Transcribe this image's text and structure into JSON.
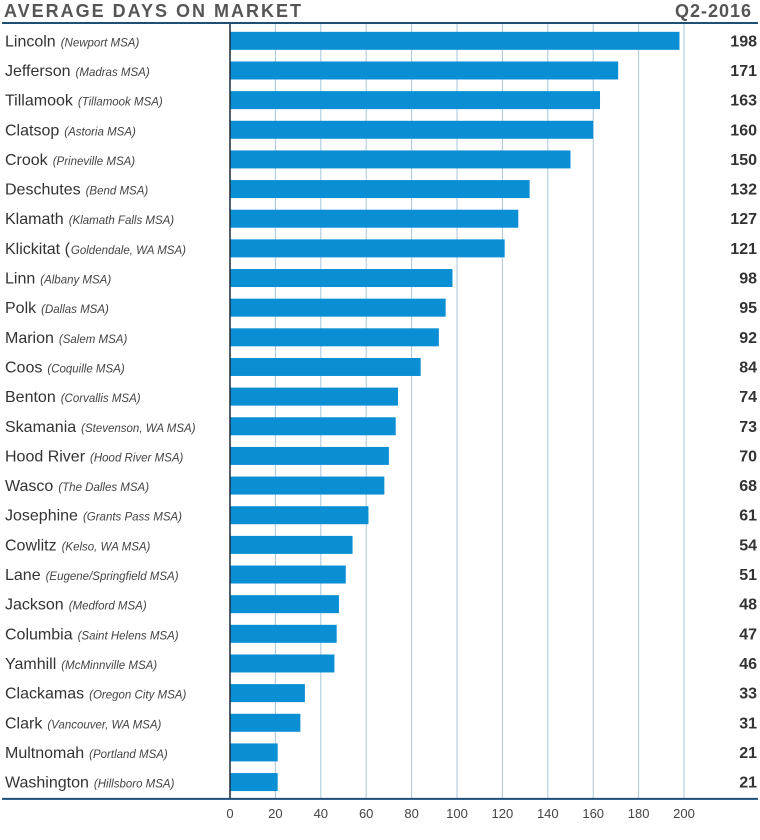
{
  "chart_data": {
    "type": "bar",
    "orientation": "horizontal",
    "title": "AVERAGE DAYS ON MARKET",
    "period": "Q2-2016",
    "xlim": [
      0,
      200
    ],
    "xticks": [
      0,
      20,
      40,
      60,
      80,
      100,
      120,
      140,
      160,
      180,
      200
    ],
    "grid": true,
    "bar_color": "#0a8fd4",
    "grid_color": "#a8c6dc",
    "rule_color": "#1f4e79",
    "categories": [
      {
        "name": "Lincoln",
        "sub": "(Newport MSA)",
        "value": 198
      },
      {
        "name": "Jefferson",
        "sub": "(Madras MSA)",
        "value": 171
      },
      {
        "name": "Tillamook",
        "sub": "(Tillamook MSA)",
        "value": 163
      },
      {
        "name": "Clatsop",
        "sub": "(Astoria MSA)",
        "value": 160
      },
      {
        "name": "Crook",
        "sub": "(Prineville MSA)",
        "value": 150
      },
      {
        "name": "Deschutes",
        "sub": "(Bend MSA)",
        "value": 132
      },
      {
        "name": "Klamath",
        "sub": "(Klamath Falls MSA)",
        "value": 127
      },
      {
        "name": "Klickitat (",
        "sub": "Goldendale, WA MSA)",
        "value": 121
      },
      {
        "name": "Linn",
        "sub": "(Albany MSA)",
        "value": 98
      },
      {
        "name": "Polk",
        "sub": "(Dallas MSA)",
        "value": 95
      },
      {
        "name": "Marion",
        "sub": "(Salem MSA)",
        "value": 92
      },
      {
        "name": "Coos",
        "sub": "(Coquille MSA)",
        "value": 84
      },
      {
        "name": "Benton",
        "sub": "(Corvallis MSA)",
        "value": 74
      },
      {
        "name": "Skamania",
        "sub": "(Stevenson, WA MSA)",
        "value": 73
      },
      {
        "name": "Hood River",
        "sub": "(Hood River MSA)",
        "value": 70
      },
      {
        "name": "Wasco",
        "sub": "(The Dalles MSA)",
        "value": 68
      },
      {
        "name": "Josephine",
        "sub": "(Grants Pass MSA)",
        "value": 61
      },
      {
        "name": "Cowlitz",
        "sub": "(Kelso, WA MSA)",
        "value": 54
      },
      {
        "name": "Lane",
        "sub": "(Eugene/Springfield MSA)",
        "value": 51
      },
      {
        "name": "Jackson",
        "sub": "(Medford MSA)",
        "value": 48
      },
      {
        "name": "Columbia",
        "sub": "(Saint Helens MSA)",
        "value": 47
      },
      {
        "name": "Yamhill",
        "sub": "(McMinnville MSA)",
        "value": 46
      },
      {
        "name": "Clackamas",
        "sub": "(Oregon City MSA)",
        "value": 33
      },
      {
        "name": "Clark",
        "sub": "(Vancouver, WA MSA)",
        "value": 31
      },
      {
        "name": "Multnomah",
        "sub": "(Portland MSA)",
        "value": 21
      },
      {
        "name": "Washington",
        "sub": "(Hillsboro MSA)",
        "value": 21
      }
    ]
  }
}
